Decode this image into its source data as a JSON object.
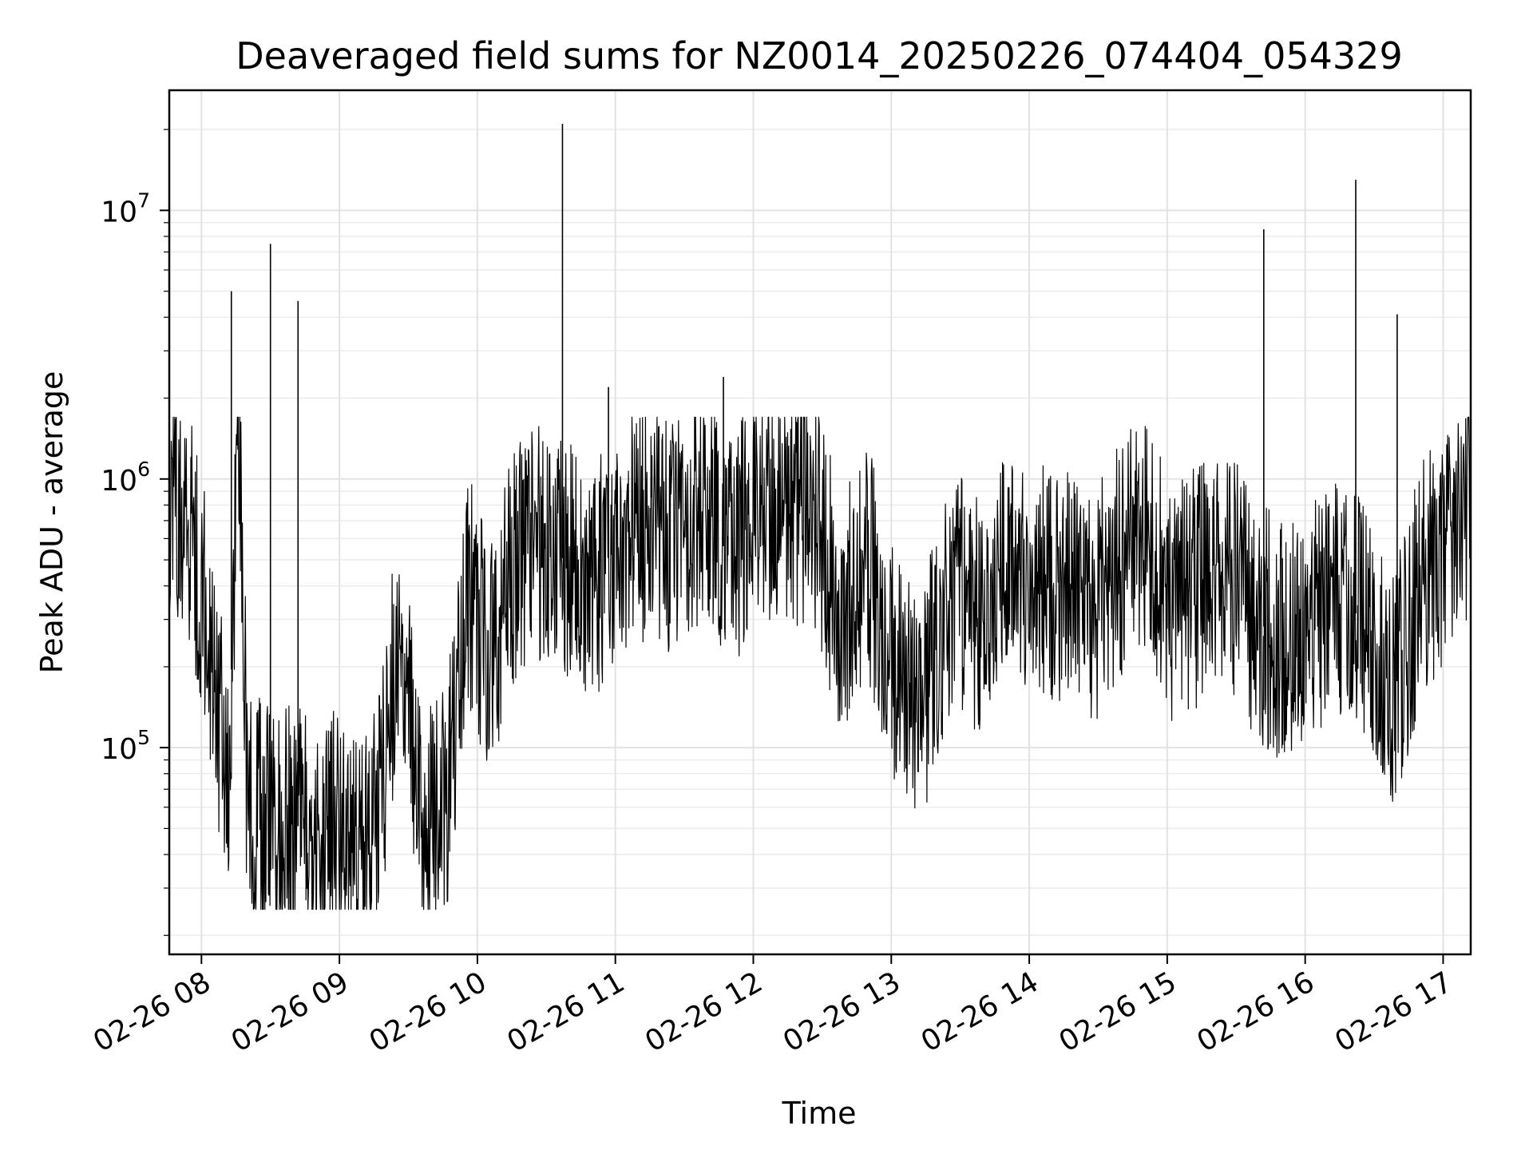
{
  "chart_data": {
    "type": "line",
    "title": "Deaveraged field sums for NZ0014_20250226_074404_054329",
    "xlabel": "Time",
    "ylabel": "Peak ADU - average",
    "xscale": "time",
    "yscale": "log",
    "grid": true,
    "legend": "none",
    "xlim": [
      "2025-02-26 07:46",
      "2025-02-26 17:12"
    ],
    "ylim": [
      17000,
      28000000
    ],
    "x_tick_labels": [
      "02-26 08",
      "02-26 09",
      "02-26 10",
      "02-26 11",
      "02-26 12",
      "02-26 13",
      "02-26 14",
      "02-26 15",
      "02-26 16",
      "02-26 17"
    ],
    "y_tick_labels": [
      {
        "base": "10",
        "exp": "5"
      },
      {
        "base": "10",
        "exp": "6"
      },
      {
        "base": "10",
        "exp": "7"
      }
    ],
    "series": [
      {
        "color": "#000000",
        "x": [
          "2025-02-26 07:46",
          "2025-02-26 07:52",
          "2025-02-26 07:58",
          "2025-02-26 08:04",
          "2025-02-26 08:08",
          "2025-02-26 08:12",
          "2025-02-26 08:16",
          "2025-02-26 08:20",
          "2025-02-26 08:26",
          "2025-02-26 08:32",
          "2025-02-26 08:40",
          "2025-02-26 08:48",
          "2025-02-26 08:56",
          "2025-02-26 09:06",
          "2025-02-26 09:16",
          "2025-02-26 09:26",
          "2025-02-26 09:36",
          "2025-02-26 09:46",
          "2025-02-26 09:56",
          "2025-02-26 10:06",
          "2025-02-26 10:16",
          "2025-02-26 10:26",
          "2025-02-26 10:38",
          "2025-02-26 10:50",
          "2025-02-26 11:02",
          "2025-02-26 11:14",
          "2025-02-26 11:26",
          "2025-02-26 11:38",
          "2025-02-26 11:50",
          "2025-02-26 12:02",
          "2025-02-26 12:14",
          "2025-02-26 12:26",
          "2025-02-26 12:38",
          "2025-02-26 12:50",
          "2025-02-26 13:02",
          "2025-02-26 13:14",
          "2025-02-26 13:26",
          "2025-02-26 13:38",
          "2025-02-26 13:50",
          "2025-02-26 14:02",
          "2025-02-26 14:14",
          "2025-02-26 14:26",
          "2025-02-26 14:38",
          "2025-02-26 14:50",
          "2025-02-26 15:02",
          "2025-02-26 15:14",
          "2025-02-26 15:26",
          "2025-02-26 15:38",
          "2025-02-26 15:50",
          "2025-02-26 16:02",
          "2025-02-26 16:14",
          "2025-02-26 16:26",
          "2025-02-26 16:38",
          "2025-02-26 16:50",
          "2025-02-26 17:02",
          "2025-02-26 17:12"
        ],
        "y": [
          900000,
          700000,
          500000,
          250000,
          120000,
          90000,
          2000000,
          60000,
          55000,
          50000,
          52000,
          48000,
          55000,
          45000,
          48000,
          300000,
          50000,
          60000,
          400000,
          200000,
          500000,
          600000,
          500000,
          400000,
          600000,
          700000,
          600000,
          800000,
          500000,
          900000,
          700000,
          800000,
          300000,
          500000,
          200000,
          150000,
          400000,
          300000,
          500000,
          450000,
          400000,
          300000,
          500000,
          600000,
          350000,
          400000,
          500000,
          300000,
          250000,
          300000,
          350000,
          300000,
          150000,
          400000,
          600000,
          900000
        ]
      }
    ],
    "spikes": [
      {
        "x": "2025-02-26 08:13",
        "y": 5000000
      },
      {
        "x": "2025-02-26 08:30",
        "y": 7500000
      },
      {
        "x": "2025-02-26 08:42",
        "y": 4600000
      },
      {
        "x": "2025-02-26 10:37",
        "y": 21000000
      },
      {
        "x": "2025-02-26 10:57",
        "y": 2200000
      },
      {
        "x": "2025-02-26 11:47",
        "y": 2400000
      },
      {
        "x": "2025-02-26 15:42",
        "y": 8500000
      },
      {
        "x": "2025-02-26 16:22",
        "y": 13000000
      },
      {
        "x": "2025-02-26 16:40",
        "y": 4100000
      }
    ]
  }
}
